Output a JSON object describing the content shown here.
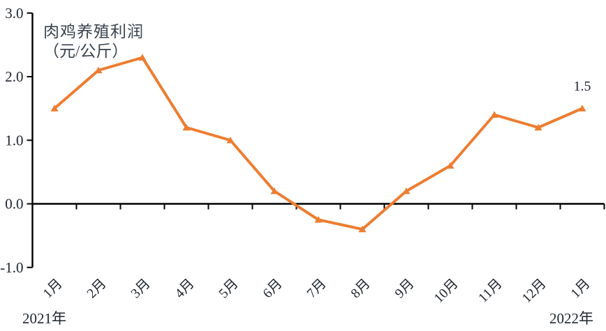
{
  "chart_data": {
    "type": "line",
    "title": "肉鸡养殖利润（元/公斤）",
    "title_lines": [
      "肉鸡养殖利润",
      "（元/公斤）"
    ],
    "categories": [
      "1月",
      "2月",
      "3月",
      "4月",
      "5月",
      "6月",
      "7月",
      "8月",
      "9月",
      "10月",
      "11月",
      "12月",
      "1月"
    ],
    "values": [
      1.5,
      2.1,
      2.3,
      1.2,
      1.0,
      0.2,
      -0.25,
      -0.4,
      0.2,
      0.6,
      1.4,
      1.2,
      1.5
    ],
    "series": [
      {
        "name": "肉鸡养殖利润",
        "values": [
          1.5,
          2.1,
          2.3,
          1.2,
          1.0,
          0.2,
          -0.25,
          -0.4,
          0.2,
          0.6,
          1.4,
          1.2,
          1.5
        ]
      }
    ],
    "xlabel": "",
    "ylabel": "肉鸡养殖利润（元/公斤）",
    "ylim": [
      -1.0,
      3.0
    ],
    "yticks": [
      3.0,
      2.0,
      1.0,
      0.0,
      -1.0
    ],
    "x_axis_years": [
      "2021年",
      "2022年"
    ],
    "x_groups": [
      {
        "label": "2021年",
        "from_index": 0,
        "to_index": 11
      },
      {
        "label": "2022年",
        "from_index": 12,
        "to_index": 12
      }
    ],
    "data_label": {
      "index": 12,
      "text": "1.5"
    },
    "line_color": "#ED7D31",
    "marker": "triangle-up",
    "axis_color": "#000000",
    "text_color": "#20262e",
    "title_color": "#39434f",
    "grid": false,
    "legend": "none"
  }
}
